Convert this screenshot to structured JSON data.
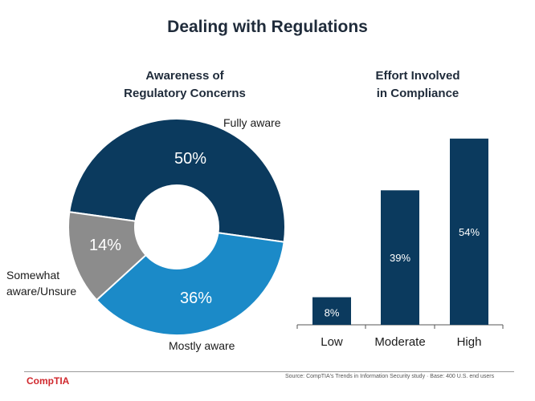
{
  "title": "Dealing with Regulations",
  "brand": "CompTIA",
  "source": "Source: CompTIA's Trends in Information Security study · Base: 400 U.S. end users",
  "colors": {
    "dark": "#0b3a5e",
    "light": "#1b8ac8",
    "gray": "#8c8c8c"
  },
  "chart_data": [
    {
      "type": "pie",
      "title": [
        "Awareness of",
        "Regulatory Concerns"
      ],
      "categories": [
        "Fully aware",
        "Mostly aware",
        "Somewhat aware/Unsure"
      ],
      "values": [
        50,
        36,
        14
      ],
      "value_labels": [
        "50%",
        "36%",
        "14%"
      ],
      "label_lines": [
        [
          "Fully aware"
        ],
        [
          "Mostly aware"
        ],
        [
          "Somewhat",
          "aware/Unsure"
        ]
      ],
      "colors": [
        "#0b3a5e",
        "#1b8ac8",
        "#8c8c8c"
      ]
    },
    {
      "type": "bar",
      "title": [
        "Effort Involved",
        "in Compliance"
      ],
      "categories": [
        "Low",
        "Moderate",
        "High"
      ],
      "values": [
        8,
        39,
        54
      ],
      "value_labels": [
        "8%",
        "39%",
        "54%"
      ],
      "ylim": [
        0,
        60
      ],
      "color": "#0b3a5e"
    }
  ]
}
